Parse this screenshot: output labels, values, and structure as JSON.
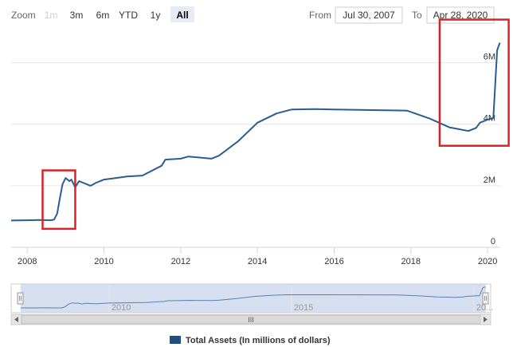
{
  "toolbar": {
    "zoom_label": "Zoom",
    "zoom_buttons": [
      {
        "label": "1m",
        "state": "disabled"
      },
      {
        "label": "3m",
        "state": "normal"
      },
      {
        "label": "6m",
        "state": "normal"
      },
      {
        "label": "YTD",
        "state": "normal"
      },
      {
        "label": "1y",
        "state": "normal"
      },
      {
        "label": "All",
        "state": "active"
      }
    ],
    "from_label": "From",
    "from_value": "Jul 30, 2007",
    "to_label": "To",
    "to_value": "Apr 28, 2020"
  },
  "navigator": {
    "tick_labels": [
      "2010",
      "2015",
      "20..."
    ],
    "scrollbar_grip": "III"
  },
  "colors": {
    "series": "#2b5d8e",
    "highlight_box": "#d9232a",
    "navigator_fill": "#c7d4ea",
    "zoom_active_bg": "#e6ebf5"
  },
  "chart_data": {
    "type": "line",
    "title": "",
    "series": [
      {
        "name": "Total Assets (In millions of dollars)",
        "points": [
          [
            2007.58,
            0.87
          ],
          [
            2008.0,
            0.88
          ],
          [
            2008.3,
            0.89
          ],
          [
            2008.6,
            0.88
          ],
          [
            2008.7,
            0.9
          ],
          [
            2008.78,
            1.1
          ],
          [
            2008.85,
            1.6
          ],
          [
            2008.92,
            2.05
          ],
          [
            2009.0,
            2.25
          ],
          [
            2009.1,
            2.15
          ],
          [
            2009.15,
            2.2
          ],
          [
            2009.25,
            1.95
          ],
          [
            2009.35,
            2.15
          ],
          [
            2009.45,
            2.1
          ],
          [
            2009.55,
            2.05
          ],
          [
            2009.65,
            2.0
          ],
          [
            2009.8,
            2.1
          ],
          [
            2010.0,
            2.2
          ],
          [
            2010.3,
            2.25
          ],
          [
            2010.6,
            2.3
          ],
          [
            2011.0,
            2.33
          ],
          [
            2011.5,
            2.65
          ],
          [
            2011.6,
            2.85
          ],
          [
            2012.0,
            2.88
          ],
          [
            2012.2,
            2.95
          ],
          [
            2012.8,
            2.88
          ],
          [
            2013.0,
            2.98
          ],
          [
            2013.5,
            3.45
          ],
          [
            2014.0,
            4.05
          ],
          [
            2014.5,
            4.35
          ],
          [
            2014.9,
            4.48
          ],
          [
            2015.5,
            4.49
          ],
          [
            2016.0,
            4.48
          ],
          [
            2017.0,
            4.46
          ],
          [
            2017.9,
            4.44
          ],
          [
            2018.5,
            4.18
          ],
          [
            2019.0,
            3.9
          ],
          [
            2019.5,
            3.78
          ],
          [
            2019.7,
            3.88
          ],
          [
            2019.8,
            4.05
          ],
          [
            2020.0,
            4.15
          ],
          [
            2020.15,
            4.2
          ],
          [
            2020.2,
            5.3
          ],
          [
            2020.25,
            6.4
          ],
          [
            2020.32,
            6.65
          ]
        ]
      }
    ],
    "xlim": [
      2007.58,
      2020.33
    ],
    "ylim": [
      0,
      7
    ],
    "x_ticks": [
      {
        "value": 2008,
        "label": "2008"
      },
      {
        "value": 2010,
        "label": "2010"
      },
      {
        "value": 2012,
        "label": "2012"
      },
      {
        "value": 2014,
        "label": "2014"
      },
      {
        "value": 2016,
        "label": "2016"
      },
      {
        "value": 2018,
        "label": "2018"
      },
      {
        "value": 2020,
        "label": "2020"
      }
    ],
    "y_ticks": [
      {
        "value": 0,
        "label": "0"
      },
      {
        "value": 2,
        "label": "2M"
      },
      {
        "value": 4,
        "label": "4M"
      },
      {
        "value": 6,
        "label": "6M"
      }
    ],
    "highlight_ranges": [
      {
        "x_from": 2008.4,
        "x_to": 2009.25,
        "y_from": 0.6,
        "y_to": 2.5
      },
      {
        "x_from": 2018.75,
        "x_to": 2020.55,
        "y_from": 3.3,
        "y_to": 7.4
      }
    ],
    "xlabel": "",
    "ylabel": "",
    "grid": true,
    "legend_position": "bottom-center"
  }
}
